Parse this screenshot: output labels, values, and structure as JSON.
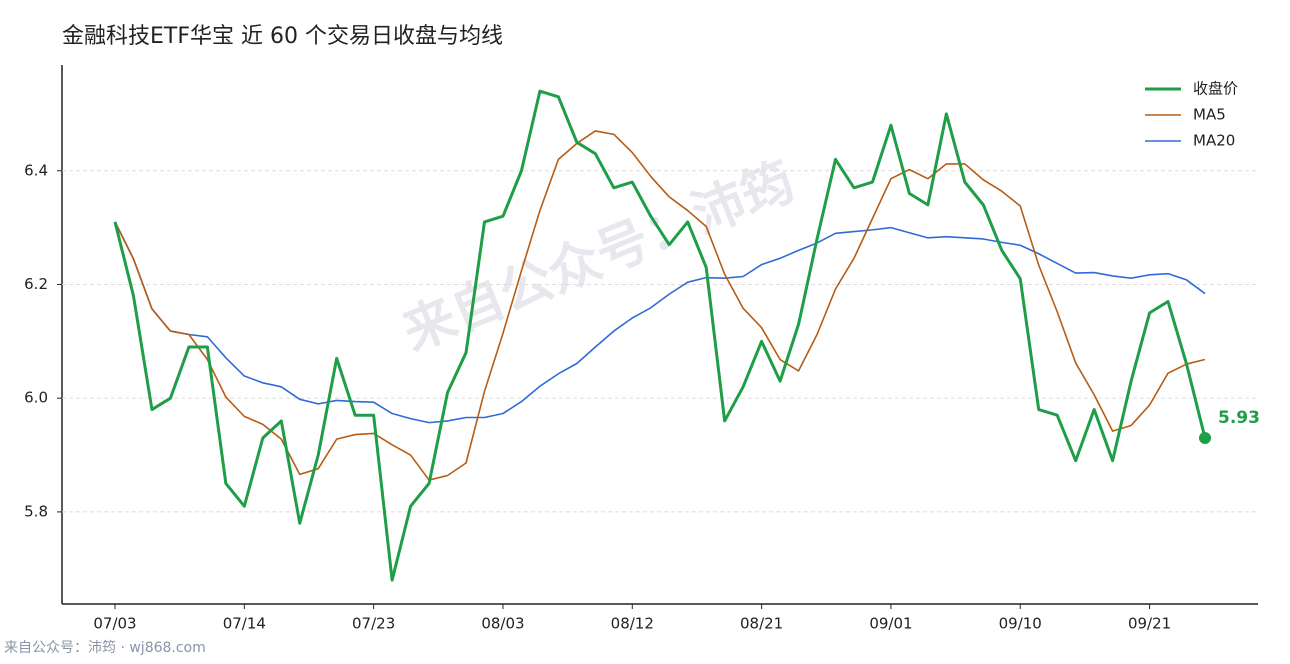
{
  "chart_data": {
    "type": "line",
    "title": "金融科技ETF华宝 近 60 个交易日收盘与均线",
    "watermark": "来自公众号：沛筠",
    "footer": "来自公众号：沛筠 · wj868.com",
    "categories": [
      "07/03",
      null,
      null,
      null,
      null,
      null,
      null,
      "07/14",
      null,
      null,
      null,
      null,
      null,
      null,
      "07/23",
      null,
      null,
      null,
      null,
      null,
      null,
      "08/03",
      null,
      null,
      null,
      null,
      null,
      null,
      "08/12",
      null,
      null,
      null,
      null,
      null,
      null,
      "08/21",
      null,
      null,
      null,
      null,
      null,
      null,
      "09/01",
      null,
      null,
      null,
      null,
      null,
      null,
      "09/10",
      null,
      null,
      null,
      null,
      null,
      null,
      "09/21",
      null,
      null,
      null
    ],
    "series": [
      {
        "name": "收盘价",
        "color": "#1f9e48",
        "width": 3,
        "values": [
          6.31,
          6.18,
          5.98,
          6.0,
          6.09,
          6.09,
          5.85,
          5.81,
          5.93,
          5.96,
          5.78,
          5.9,
          6.07,
          5.97,
          5.97,
          5.68,
          5.81,
          5.85,
          6.01,
          6.08,
          6.31,
          6.32,
          6.4,
          6.54,
          6.53,
          6.45,
          6.43,
          6.37,
          6.38,
          6.32,
          6.27,
          6.31,
          6.23,
          5.96,
          6.02,
          6.1,
          6.03,
          6.13,
          6.28,
          6.42,
          6.37,
          6.38,
          6.48,
          6.36,
          6.34,
          6.5,
          6.38,
          6.34,
          6.26,
          6.21,
          5.98,
          5.97,
          5.89,
          5.98,
          5.89,
          6.03,
          6.15,
          6.17,
          6.06,
          5.93
        ]
      },
      {
        "name": "MA5",
        "color": "#b85c14",
        "width": 1.6,
        "values": [
          6.31,
          6.245,
          6.157,
          6.118,
          6.112,
          6.068,
          6.002,
          5.968,
          5.954,
          5.928,
          5.866,
          5.876,
          5.928,
          5.936,
          5.938,
          5.918,
          5.9,
          5.856,
          5.864,
          5.886,
          6.012,
          6.114,
          6.224,
          6.33,
          6.42,
          6.448,
          6.47,
          6.464,
          6.432,
          6.39,
          6.354,
          6.33,
          6.302,
          6.218,
          6.158,
          6.124,
          6.068,
          6.048,
          6.112,
          6.192,
          6.246,
          6.316,
          6.386,
          6.402,
          6.386,
          6.412,
          6.412,
          6.384,
          6.364,
          6.338,
          6.234,
          6.152,
          6.062,
          6.006,
          5.942,
          5.952,
          5.988,
          6.044,
          6.06,
          6.068
        ]
      },
      {
        "name": "MA20",
        "color": "#2f6bd8",
        "width": 1.6,
        "values": [
          6.31,
          6.245,
          6.157,
          6.118,
          6.112,
          6.108,
          6.071,
          6.039,
          6.027,
          6.02,
          5.998,
          5.99,
          5.996,
          5.994,
          5.993,
          5.973,
          5.964,
          5.957,
          5.96,
          5.966,
          5.966,
          5.973,
          5.994,
          6.021,
          6.043,
          6.061,
          6.09,
          6.118,
          6.141,
          6.159,
          6.183,
          6.204,
          6.212,
          6.211,
          6.214,
          6.235,
          6.246,
          6.26,
          6.273,
          6.29,
          6.293,
          6.296,
          6.3,
          6.291,
          6.282,
          6.284,
          6.282,
          6.28,
          6.274,
          6.269,
          6.254,
          6.237,
          6.22,
          6.221,
          6.215,
          6.211,
          6.217,
          6.219,
          6.208,
          6.184
        ]
      }
    ],
    "ylim": [
      5.638,
      6.586
    ],
    "yticks": [
      5.8,
      {
        "value": 6,
        "label": "6.0"
      },
      6.2,
      6.4
    ],
    "grid": true,
    "legend": "upper-right"
  }
}
